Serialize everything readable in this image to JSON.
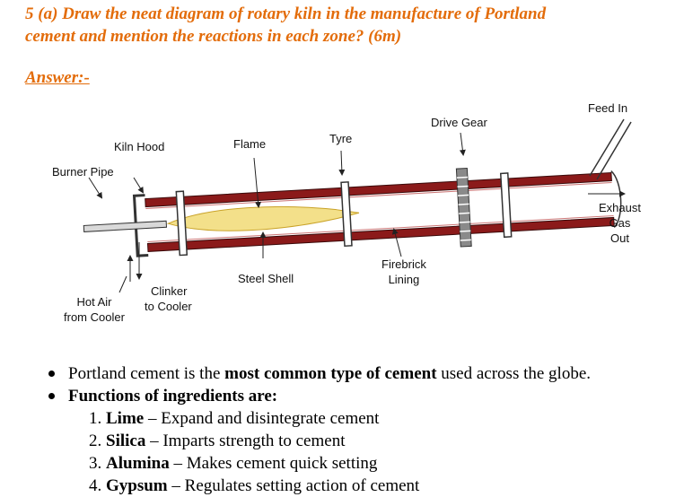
{
  "question": {
    "line1": "5 (a) Draw the neat diagram of rotary  kiln in the manufacture of Portland",
    "line2": "cement and mention the reactions in each zone?  (6m)"
  },
  "answer_heading": "Answer:-",
  "diagram": {
    "labels": {
      "feed_in": "Feed In",
      "drive_gear": "Drive Gear",
      "tyre": "Tyre",
      "flame": "Flame",
      "kiln_hood": "Kiln Hood",
      "burner_pipe": "Burner Pipe",
      "exhaust_1": "Exhaust",
      "exhaust_2": "Gas",
      "exhaust_3": "Out",
      "firebrick_1": "Firebrick",
      "firebrick_2": "Lining",
      "steel_shell": "Steel Shell",
      "clinker_1": "Clinker",
      "clinker_2": "to Cooler",
      "hot_air_1": "Hot Air",
      "hot_air_2": "from Cooler"
    },
    "colors": {
      "shell": "#8b1a1a",
      "flame": "#f3e08a",
      "flame_outline": "#c9a227",
      "gear": "#8a8a8a"
    }
  },
  "bullets": {
    "b1_pre": "Portland cement is the ",
    "b1_bold": "most common type of cement",
    "b1_post": " used across the globe.",
    "b2": "Functions of ingredients  are:"
  },
  "ingredients": [
    {
      "num": "1.",
      "name": "Lime",
      "desc": " – Expand and disintegrate cement"
    },
    {
      "num": "2.",
      "name": "Silica",
      "desc": " – Imparts strength to cement"
    },
    {
      "num": "3.",
      "name": "Alumina",
      "desc": "  – Makes cement quick setting"
    },
    {
      "num": "4.",
      "name": "Gypsum",
      "desc": "  – Regulates setting action of cement"
    }
  ]
}
